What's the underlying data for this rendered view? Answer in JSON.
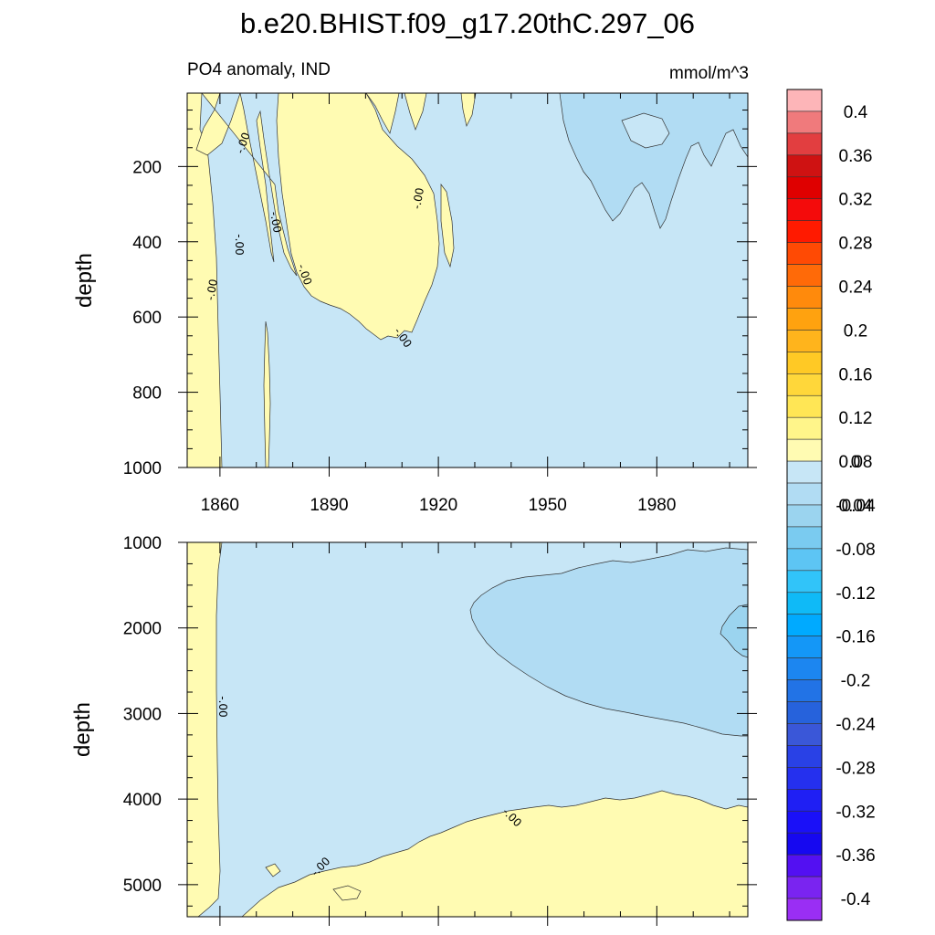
{
  "chart_data": {
    "type": "heatmap",
    "title": "b.e20.BHIST.f09_g17.20thC.297_06",
    "subtitle_left": "PO4 anomaly, IND",
    "subtitle_right": "mmol/m^3",
    "x_ticks": [
      "1860",
      "1890",
      "1920",
      "1950",
      "1980"
    ],
    "x_range": [
      1851,
      2005
    ],
    "panels": [
      {
        "name": "upper",
        "ylabel": "depth",
        "y_ticks": [
          "200",
          "400",
          "600",
          "800",
          "1000"
        ],
        "y_range": [
          5,
          1000
        ],
        "contour_labels": [
          "-.00",
          "-.00",
          "-.00",
          "-.00",
          "-.00",
          "-.00",
          "-.00"
        ]
      },
      {
        "name": "lower",
        "ylabel": "depth",
        "y_ticks": [
          "1000",
          "2000",
          "3000",
          "4000",
          "5000"
        ],
        "y_range": [
          1000,
          5375
        ],
        "contour_labels": [
          "-.00",
          "-.00",
          "-.00"
        ]
      }
    ],
    "colorbar": {
      "labels": [
        "0.4",
        "0.36",
        "0.32",
        "0.28",
        "0.24",
        "0.2",
        "0.16",
        "0.12",
        "0.08",
        "0.04",
        "0",
        "-0.04",
        "-0.08",
        "-0.12",
        "-0.16",
        "-0.2",
        "-0.24",
        "-0.28",
        "-0.32",
        "-0.36",
        "-0.4"
      ],
      "colors": [
        "#fdb5b8",
        "#f07a7c",
        "#e23e40",
        "#cf1212",
        "#df0000",
        "#f40b0b",
        "#ff1a00",
        "#ff4a04",
        "#ff6a08",
        "#ff8a0c",
        "#ffa20f",
        "#ffb41c",
        "#ffc925",
        "#ffd73a",
        "#ffe655",
        "#fff58a",
        "#fffbb2",
        "#c7e6f6",
        "#b1dcf3",
        "#9bd4ef",
        "#7acbf0",
        "#5dc5f4",
        "#31c4f9",
        "#0fbaf7",
        "#00aaff",
        "#1497f7",
        "#1c86f0",
        "#2273e6",
        "#2662dc",
        "#3a57d8",
        "#2941e6",
        "#2530ee",
        "#1f1ff4",
        "#1a10f8",
        "#1608f0",
        "#5310f2",
        "#7a24f0",
        "#9a2ef4"
      ]
    },
    "colors": {
      "pos_small": "#fffbb2",
      "neg_small": "#c7e6f6",
      "neg_mid": "#b1dcf3",
      "neg_more": "#9bd4ef"
    }
  }
}
